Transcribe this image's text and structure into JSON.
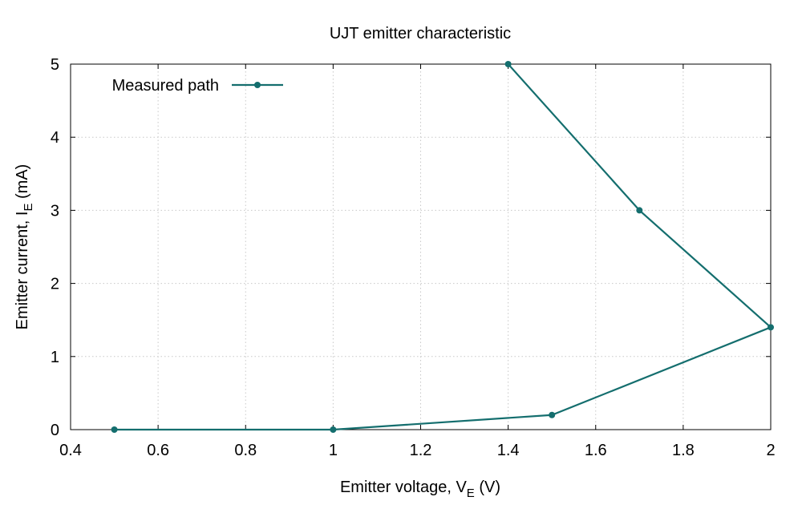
{
  "chart_data": {
    "type": "line",
    "title": "UJT emitter characteristic",
    "xlabel": {
      "main": "Emitter voltage, V",
      "sub": "E",
      "after": " (V)"
    },
    "ylabel": {
      "main": "Emitter current, I",
      "sub": "E",
      "after": " (mA)"
    },
    "xlim": [
      0.4,
      2.0
    ],
    "ylim": [
      0,
      5
    ],
    "xticks": [
      "0.4",
      "0.6",
      "0.8",
      "1",
      "1.2",
      "1.4",
      "1.6",
      "1.8",
      "2"
    ],
    "yticks": [
      "0",
      "1",
      "2",
      "3",
      "4",
      "5"
    ],
    "grid": true,
    "legend_position": "top-left",
    "series": [
      {
        "name": "Measured path",
        "color": "#146e6e",
        "marker": "circle",
        "x": [
          0.5,
          1.0,
          1.5,
          2.0,
          1.7,
          1.4
        ],
        "y": [
          0.0,
          0.0,
          0.2,
          1.4,
          3.0,
          5.0
        ]
      }
    ]
  }
}
